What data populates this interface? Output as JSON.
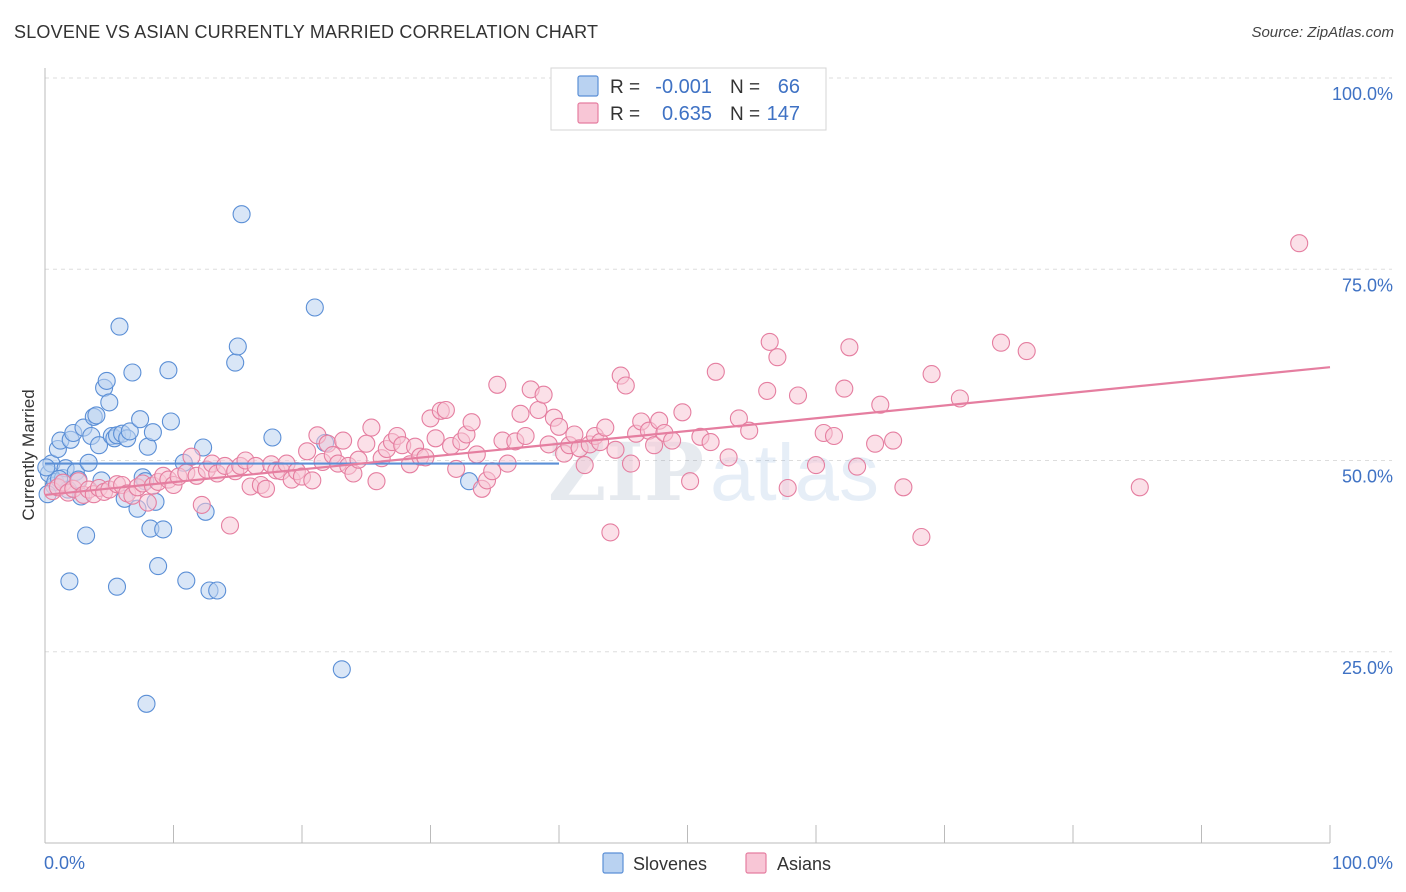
{
  "title": "SLOVENE VS ASIAN CURRENTLY MARRIED CORRELATION CHART",
  "source": "Source: ZipAtlas.com",
  "watermark": {
    "zip": "ZIP",
    "atlas": "atlas"
  },
  "legend_box": {
    "rows": [
      {
        "r_label": "R =",
        "r_value": "-0.001",
        "n_label": "N =",
        "n_value": "66",
        "color": "#5b8fd6",
        "fill": "#b9d2f1"
      },
      {
        "r_label": "R =",
        "r_value": "0.635",
        "n_label": "N =",
        "n_value": "147",
        "color": "#e57ea0",
        "fill": "#f8c6d6"
      }
    ]
  },
  "bottom_legend": [
    {
      "label": "Slovenes",
      "color": "#5b8fd6",
      "fill": "#b9d2f1"
    },
    {
      "label": "Asians",
      "color": "#e57ea0",
      "fill": "#f8c6d6"
    }
  ],
  "chart_data": {
    "type": "scatter",
    "xlabel": "",
    "ylabel": "Currently Married",
    "xlim": [
      0,
      100
    ],
    "ylim": [
      0,
      100
    ],
    "x_tick_labels": [
      "0.0%",
      "100.0%"
    ],
    "y_tick_labels": [
      {
        "value": 100,
        "label": "100.0%"
      },
      {
        "value": 75,
        "label": "75.0%"
      },
      {
        "value": 50,
        "label": "50.0%"
      },
      {
        "value": 25,
        "label": "25.0%"
      }
    ],
    "gridlines": true,
    "series": [
      {
        "name": "Slovenes",
        "color": "#5b8fd6",
        "fill": "#b9d2f1",
        "trend": {
          "x": [
            0,
            40
          ],
          "y": [
            49.6,
            49.6
          ]
        },
        "points": [
          [
            0.3,
            48.3
          ],
          [
            0.5,
            49.6
          ],
          [
            0.7,
            46.7
          ],
          [
            0.8,
            47.2
          ],
          [
            1.0,
            51.5
          ],
          [
            1.2,
            52.6
          ],
          [
            1.4,
            47.7
          ],
          [
            1.6,
            49.0
          ],
          [
            1.8,
            46.2
          ],
          [
            2.0,
            52.7
          ],
          [
            2.2,
            53.6
          ],
          [
            2.4,
            48.5
          ],
          [
            2.6,
            47.5
          ],
          [
            2.8,
            45.3
          ],
          [
            3.0,
            54.3
          ],
          [
            3.2,
            40.2
          ],
          [
            3.4,
            49.7
          ],
          [
            3.6,
            53.2
          ],
          [
            3.8,
            55.7
          ],
          [
            4.0,
            55.9
          ],
          [
            4.2,
            52.0
          ],
          [
            4.4,
            47.4
          ],
          [
            4.6,
            59.5
          ],
          [
            4.8,
            60.4
          ],
          [
            5.0,
            57.6
          ],
          [
            5.2,
            53.2
          ],
          [
            5.4,
            52.9
          ],
          [
            5.6,
            53.3
          ],
          [
            5.8,
            67.5
          ],
          [
            6.0,
            53.5
          ],
          [
            6.2,
            45.0
          ],
          [
            6.4,
            52.9
          ],
          [
            6.6,
            53.8
          ],
          [
            6.8,
            61.5
          ],
          [
            7.2,
            43.7
          ],
          [
            7.4,
            55.4
          ],
          [
            7.6,
            47.8
          ],
          [
            7.8,
            47.3
          ],
          [
            8.0,
            51.8
          ],
          [
            8.2,
            41.1
          ],
          [
            8.4,
            53.7
          ],
          [
            8.6,
            44.6
          ],
          [
            8.8,
            36.2
          ],
          [
            9.2,
            41.0
          ],
          [
            9.6,
            61.8
          ],
          [
            9.8,
            55.1
          ],
          [
            10.8,
            49.7
          ],
          [
            11.0,
            34.3
          ],
          [
            12.3,
            51.7
          ],
          [
            12.5,
            43.3
          ],
          [
            12.8,
            33.0
          ],
          [
            13.4,
            33.0
          ],
          [
            14.8,
            62.8
          ],
          [
            15.0,
            64.9
          ],
          [
            15.3,
            82.2
          ],
          [
            17.7,
            53.0
          ],
          [
            21.0,
            70.0
          ],
          [
            21.8,
            52.3
          ],
          [
            23.1,
            22.7
          ],
          [
            33.0,
            47.3
          ],
          [
            0.2,
            45.6
          ],
          [
            1.9,
            34.2
          ],
          [
            5.6,
            33.5
          ],
          [
            7.9,
            18.2
          ],
          [
            1.1,
            47.6
          ],
          [
            0.1,
            49.1
          ]
        ]
      },
      {
        "name": "Asians",
        "color": "#e57ea0",
        "fill": "#f8c6d6",
        "trend": {
          "x": [
            0,
            100
          ],
          "y": [
            45.5,
            62.2
          ]
        },
        "points": [
          [
            0.6,
            46.0
          ],
          [
            1.0,
            46.5
          ],
          [
            1.4,
            47.1
          ],
          [
            1.8,
            45.8
          ],
          [
            2.2,
            46.3
          ],
          [
            2.6,
            47.3
          ],
          [
            3.0,
            45.5
          ],
          [
            3.4,
            46.2
          ],
          [
            3.8,
            45.6
          ],
          [
            4.2,
            46.4
          ],
          [
            4.6,
            45.9
          ],
          [
            5.0,
            46.2
          ],
          [
            5.6,
            46.9
          ],
          [
            6.0,
            46.8
          ],
          [
            6.4,
            45.7
          ],
          [
            6.8,
            45.4
          ],
          [
            7.2,
            46.5
          ],
          [
            7.6,
            47.0
          ],
          [
            8.0,
            44.5
          ],
          [
            8.4,
            46.7
          ],
          [
            8.8,
            47.2
          ],
          [
            9.2,
            48.0
          ],
          [
            9.6,
            47.5
          ],
          [
            10.0,
            46.8
          ],
          [
            10.4,
            47.9
          ],
          [
            11.0,
            48.4
          ],
          [
            11.4,
            50.5
          ],
          [
            11.8,
            48.0
          ],
          [
            12.2,
            44.2
          ],
          [
            12.6,
            48.8
          ],
          [
            13.0,
            49.6
          ],
          [
            13.4,
            48.3
          ],
          [
            14.0,
            49.3
          ],
          [
            14.4,
            41.5
          ],
          [
            14.8,
            48.6
          ],
          [
            15.2,
            49.3
          ],
          [
            15.6,
            50.0
          ],
          [
            16.0,
            46.6
          ],
          [
            16.4,
            49.3
          ],
          [
            16.8,
            46.8
          ],
          [
            17.2,
            46.3
          ],
          [
            17.6,
            49.5
          ],
          [
            18.0,
            48.7
          ],
          [
            18.4,
            48.6
          ],
          [
            18.8,
            49.6
          ],
          [
            19.2,
            47.5
          ],
          [
            19.6,
            48.6
          ],
          [
            20.0,
            47.9
          ],
          [
            20.4,
            51.2
          ],
          [
            20.8,
            47.4
          ],
          [
            21.2,
            53.3
          ],
          [
            21.6,
            49.8
          ],
          [
            22.0,
            52.2
          ],
          [
            22.4,
            50.7
          ],
          [
            22.8,
            49.6
          ],
          [
            23.2,
            52.6
          ],
          [
            23.6,
            49.3
          ],
          [
            24.0,
            48.3
          ],
          [
            24.4,
            50.1
          ],
          [
            25.0,
            52.2
          ],
          [
            25.4,
            54.3
          ],
          [
            25.8,
            47.3
          ],
          [
            26.2,
            50.3
          ],
          [
            26.6,
            51.5
          ],
          [
            27.0,
            52.4
          ],
          [
            27.4,
            53.2
          ],
          [
            27.8,
            52.0
          ],
          [
            28.4,
            49.5
          ],
          [
            28.8,
            51.8
          ],
          [
            29.2,
            50.5
          ],
          [
            29.6,
            50.4
          ],
          [
            30.0,
            55.5
          ],
          [
            30.4,
            52.9
          ],
          [
            30.8,
            56.5
          ],
          [
            31.2,
            56.6
          ],
          [
            31.6,
            51.9
          ],
          [
            32.0,
            48.9
          ],
          [
            32.4,
            52.5
          ],
          [
            32.8,
            53.4
          ],
          [
            33.2,
            55.0
          ],
          [
            33.6,
            50.8
          ],
          [
            34.0,
            46.3
          ],
          [
            34.4,
            47.4
          ],
          [
            34.8,
            48.6
          ],
          [
            35.2,
            59.9
          ],
          [
            35.6,
            52.6
          ],
          [
            36.0,
            49.6
          ],
          [
            36.6,
            52.5
          ],
          [
            37.0,
            56.1
          ],
          [
            37.4,
            53.2
          ],
          [
            37.8,
            59.3
          ],
          [
            38.4,
            56.6
          ],
          [
            38.8,
            58.6
          ],
          [
            39.2,
            52.1
          ],
          [
            39.6,
            55.6
          ],
          [
            40.0,
            54.4
          ],
          [
            40.4,
            50.9
          ],
          [
            40.8,
            52.0
          ],
          [
            41.2,
            53.4
          ],
          [
            41.6,
            51.6
          ],
          [
            42.0,
            49.4
          ],
          [
            42.4,
            52.1
          ],
          [
            42.8,
            53.2
          ],
          [
            43.2,
            52.4
          ],
          [
            43.6,
            54.3
          ],
          [
            44.0,
            40.6
          ],
          [
            44.4,
            51.4
          ],
          [
            44.8,
            61.1
          ],
          [
            45.2,
            59.8
          ],
          [
            45.6,
            49.6
          ],
          [
            46.0,
            53.5
          ],
          [
            46.4,
            55.1
          ],
          [
            47.0,
            53.9
          ],
          [
            47.4,
            52.0
          ],
          [
            47.8,
            55.2
          ],
          [
            48.2,
            53.6
          ],
          [
            48.8,
            52.6
          ],
          [
            49.6,
            56.3
          ],
          [
            50.2,
            47.3
          ],
          [
            51.0,
            53.1
          ],
          [
            51.8,
            52.4
          ],
          [
            52.2,
            61.6
          ],
          [
            53.2,
            50.4
          ],
          [
            54.0,
            55.5
          ],
          [
            54.8,
            53.9
          ],
          [
            56.2,
            59.1
          ],
          [
            56.4,
            65.5
          ],
          [
            57.0,
            63.5
          ],
          [
            57.8,
            46.4
          ],
          [
            58.6,
            58.5
          ],
          [
            60.0,
            49.4
          ],
          [
            60.6,
            53.6
          ],
          [
            61.4,
            53.2
          ],
          [
            62.2,
            59.4
          ],
          [
            62.6,
            64.8
          ],
          [
            63.2,
            49.2
          ],
          [
            64.6,
            52.2
          ],
          [
            65.0,
            57.3
          ],
          [
            66.0,
            52.6
          ],
          [
            66.8,
            46.5
          ],
          [
            68.2,
            40.0
          ],
          [
            69.0,
            61.3
          ],
          [
            71.2,
            58.1
          ],
          [
            74.4,
            65.4
          ],
          [
            76.4,
            64.3
          ],
          [
            97.6,
            78.4
          ],
          [
            85.2,
            46.5
          ]
        ]
      }
    ]
  }
}
